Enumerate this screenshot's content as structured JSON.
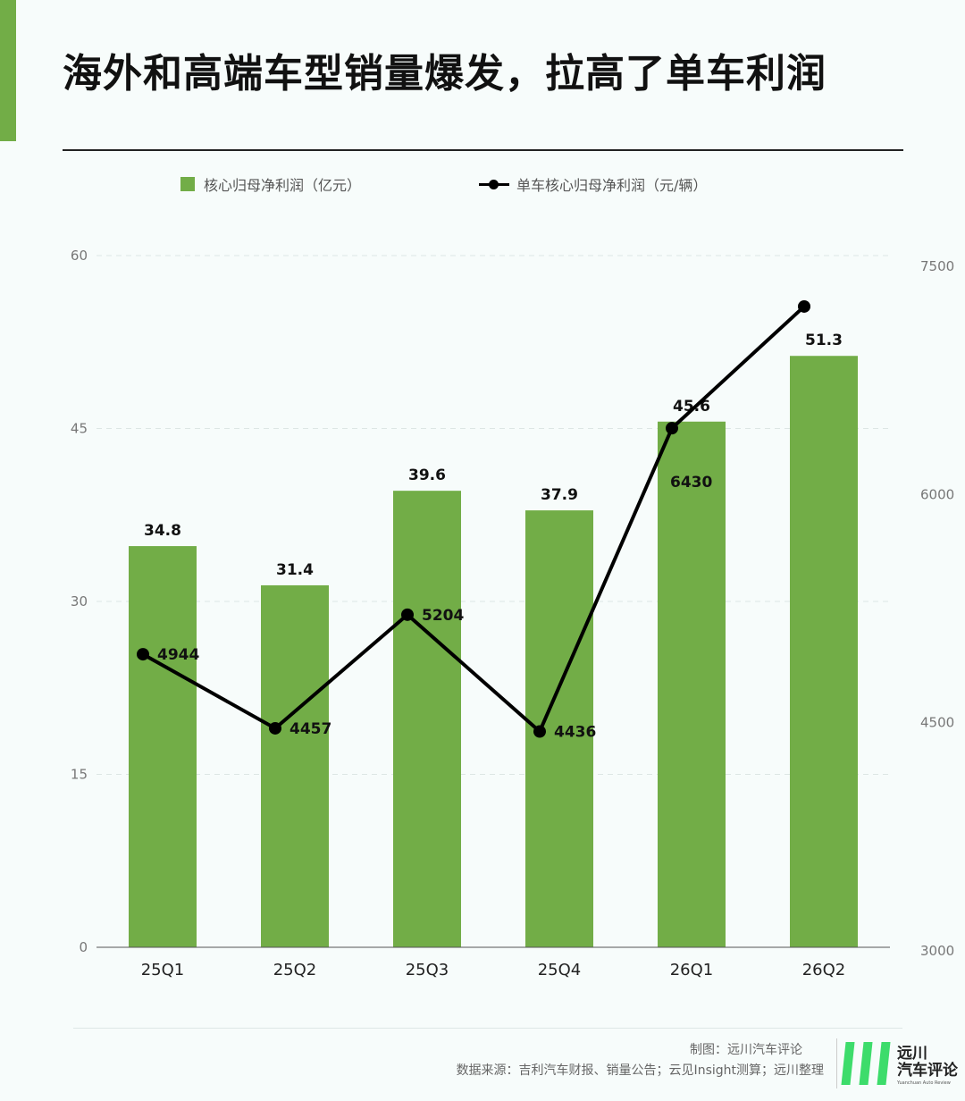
{
  "title": "海外和高端车型销量爆发，拉高了单车利润",
  "legend": {
    "bar_label": "核心归母净利润（亿元）",
    "line_label": "单车核心归母净利润（元/辆）"
  },
  "footer": {
    "credit": "制图：远川汽车评论",
    "source": "数据来源：吉利汽车财报、销量公告；云见Insight测算；远川整理"
  },
  "logo": {
    "name_line1": "远川",
    "name_line2": "汽车评论",
    "subtitle": "Yuanchuan Auto Review"
  },
  "colors": {
    "bar": "#72ad47",
    "line": "#000000",
    "accent": "#72ad47",
    "background": "#f7fcfb"
  },
  "chart_data": {
    "type": "bar",
    "categories": [
      "25Q1",
      "25Q2",
      "25Q3",
      "25Q4",
      "26Q1",
      "26Q2"
    ],
    "series": [
      {
        "name": "核心归母净利润（亿元）",
        "type": "bar",
        "axis": "left",
        "values": [
          34.8,
          31.4,
          39.6,
          37.9,
          45.6,
          51.3
        ],
        "labels": [
          "34.8",
          "31.4",
          "39.6",
          "37.9",
          "45.6",
          "51.3"
        ]
      },
      {
        "name": "单车核心归母净利润（元/辆）",
        "type": "line",
        "axis": "right",
        "values": [
          4944,
          4457,
          5204,
          4436,
          6430,
          7230
        ],
        "labels": [
          "4944",
          "4457",
          "5204",
          "4436",
          "6430",
          ""
        ]
      }
    ],
    "y_left": {
      "min": 0,
      "max": 60,
      "ticks": [
        "0",
        "15",
        "30",
        "45",
        "60"
      ]
    },
    "y_right": {
      "min": 3000,
      "max": 7500,
      "ticks": [
        "3000",
        "4500",
        "6000",
        "7500"
      ]
    },
    "grid": true,
    "legend_position": "top"
  }
}
